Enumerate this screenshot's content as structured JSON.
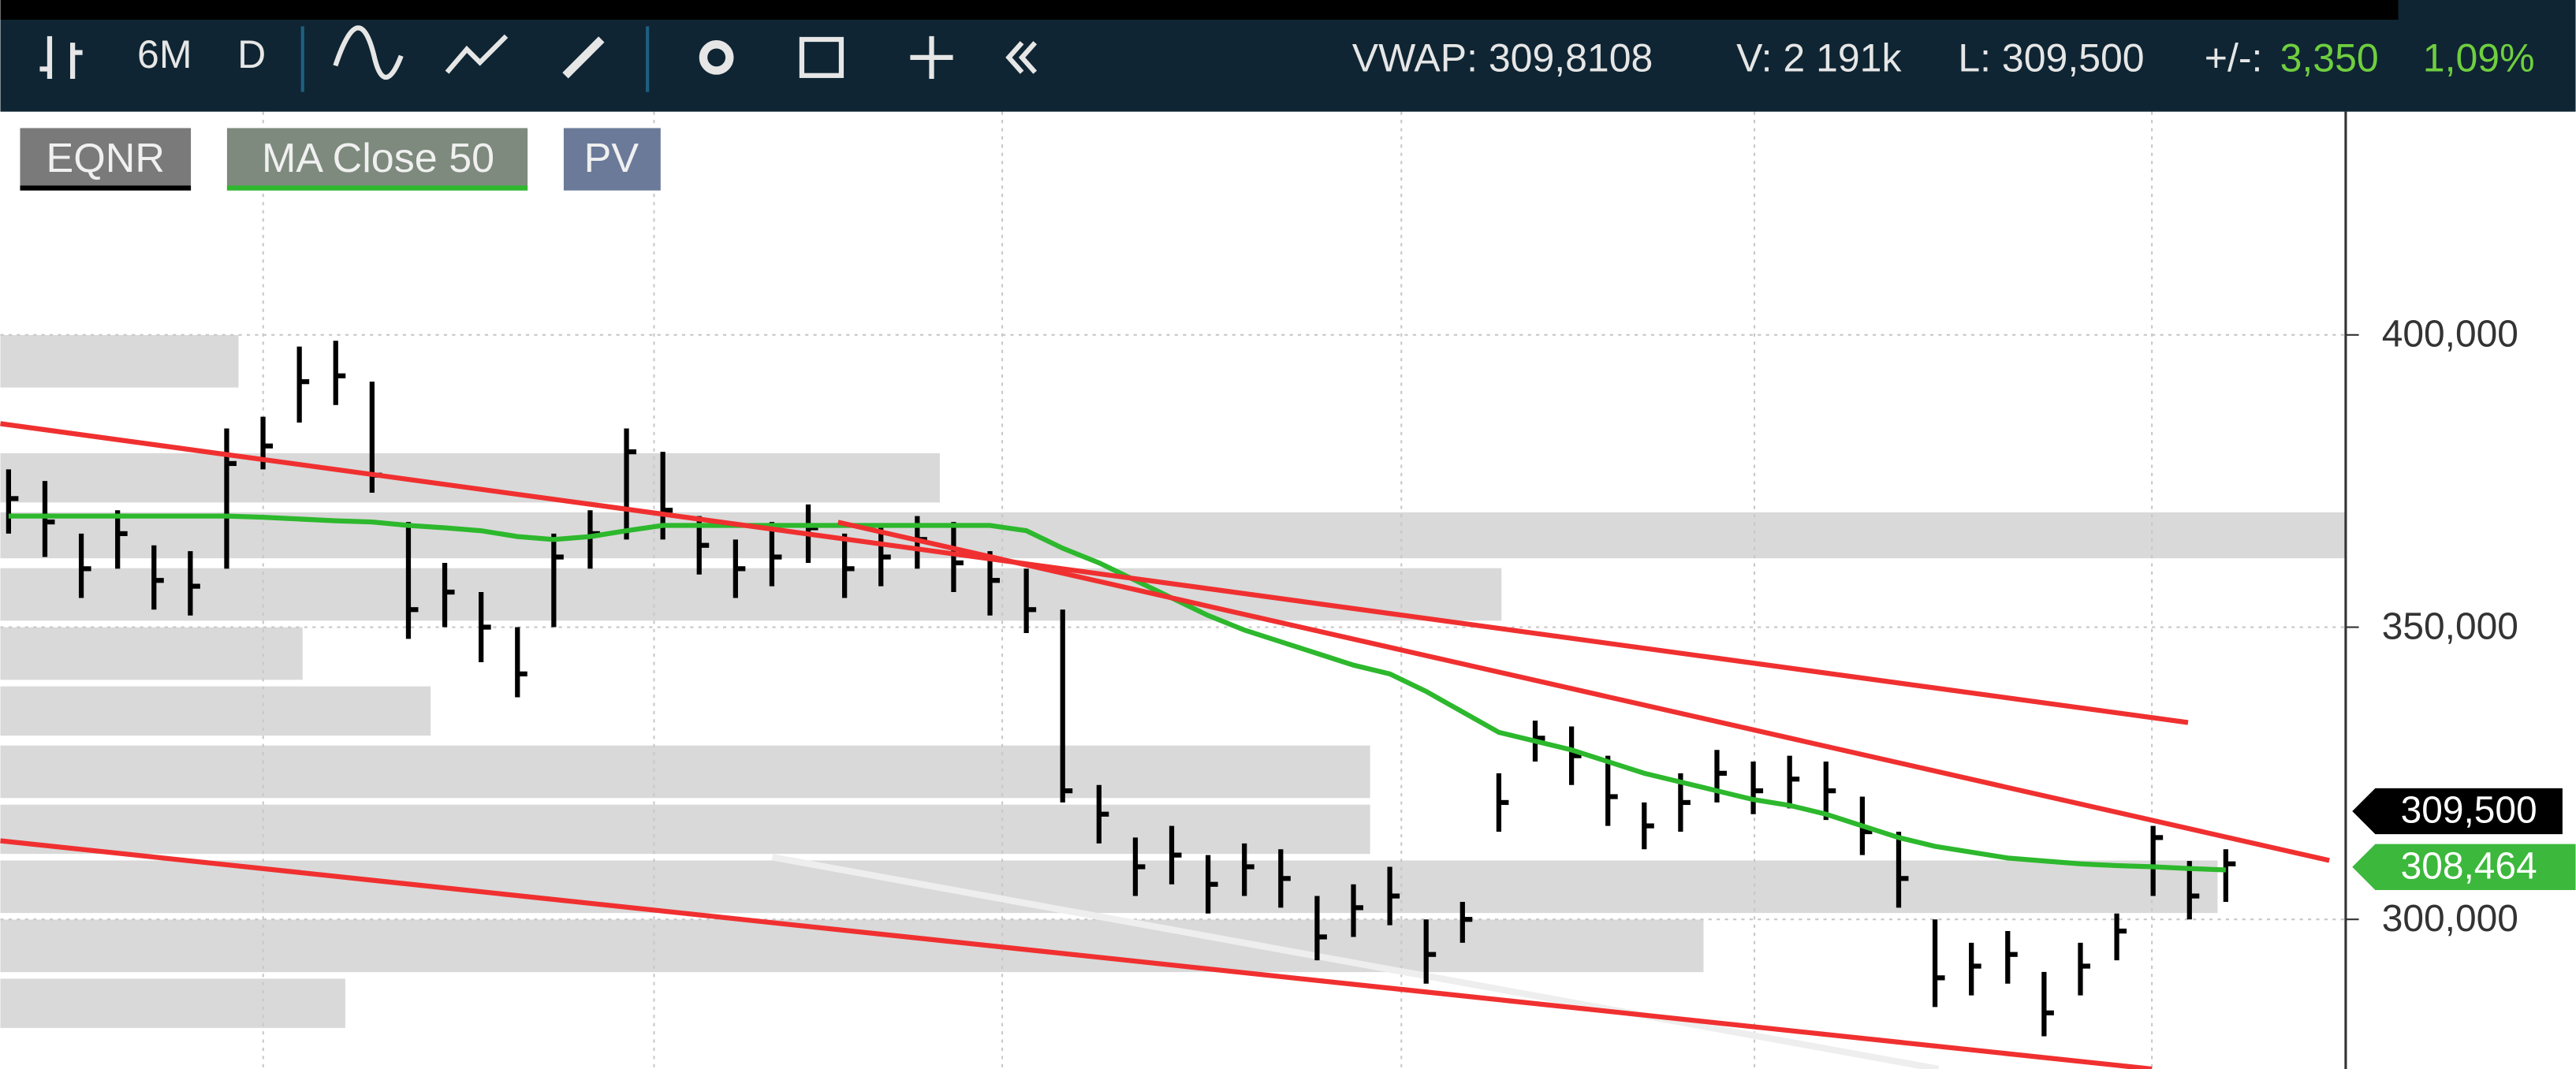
{
  "toolbar": {
    "period": "6M",
    "interval": "D",
    "vwap": "VWAP: 309,8108",
    "volume": "V: 2 191k",
    "last": "L: 309,500",
    "change_label": "+/-:",
    "change": "3,350",
    "change_pct": "1,09%"
  },
  "legend_buttons": {
    "overlay": "PV"
  },
  "price_tags": [
    "309,500",
    "308,464"
  ],
  "chart_data": {
    "type": "ohlc",
    "ohlc": {
      "name": "EQNR",
      "color": "#000000",
      "high": [
        377,
        375,
        366,
        370,
        364,
        363,
        384,
        386,
        398,
        399,
        392,
        368,
        361,
        356,
        350,
        366,
        370,
        384,
        380,
        369,
        365,
        368,
        371,
        366,
        367,
        369,
        368,
        363,
        360,
        353,
        323,
        314,
        316,
        311,
        313,
        312,
        304,
        306,
        309,
        300,
        303,
        325,
        334,
        333,
        328,
        320,
        325,
        329,
        327,
        328,
        327,
        321,
        315,
        300,
        296,
        298,
        291,
        296,
        301,
        316,
        310,
        312
      ],
      "low": [
        366,
        362,
        355,
        360,
        353,
        352,
        360,
        377,
        385,
        388,
        373,
        348,
        350,
        344,
        338,
        350,
        360,
        365,
        365,
        359,
        355,
        357,
        361,
        355,
        357,
        360,
        356,
        352,
        349,
        320,
        313,
        304,
        306,
        301,
        304,
        302,
        293,
        297,
        299,
        289,
        296,
        315,
        327,
        323,
        316,
        312,
        315,
        320,
        318,
        319,
        317,
        311,
        302,
        285,
        287,
        289,
        280,
        287,
        293,
        304,
        300,
        303
      ],
      "close": [
        372,
        368,
        360,
        366,
        358,
        357,
        378,
        381,
        392,
        393,
        376,
        353,
        356,
        350,
        342,
        362,
        366,
        380,
        370,
        364,
        360,
        362,
        367,
        360,
        362,
        365,
        361,
        358,
        353,
        322,
        318,
        309,
        311,
        306,
        309,
        307,
        297,
        302,
        304,
        294,
        300,
        320,
        331,
        328,
        321,
        316,
        320,
        325,
        322,
        324,
        322,
        315,
        307,
        290,
        292,
        294,
        284,
        292,
        298,
        314,
        304,
        309.5
      ]
    },
    "series": [
      {
        "name": "MA Close 50",
        "color": "#2db82d",
        "values": [
          369,
          369,
          369,
          369,
          369,
          369,
          369,
          368.8,
          368.5,
          368.2,
          368,
          367.4,
          367,
          366.5,
          365.5,
          365,
          365.5,
          366.5,
          367.4,
          367.4,
          367.4,
          367.4,
          367.4,
          367.4,
          367.4,
          367.4,
          367.4,
          367.4,
          366.5,
          363.5,
          361,
          358,
          355,
          352,
          349.5,
          347.5,
          345.5,
          343.5,
          342,
          339,
          335.5,
          332,
          330.5,
          329,
          327,
          325,
          323.5,
          322,
          320.5,
          319.5,
          318,
          316,
          314,
          312.5,
          311.5,
          310.5,
          310,
          309.5,
          309.2,
          309,
          308.7,
          308.464
        ]
      }
    ],
    "ylim": [
      274.4,
      438.2
    ],
    "yticks": [
      {
        "value": 300,
        "label": "300,000"
      },
      {
        "value": 350,
        "label": "350,000"
      },
      {
        "value": 400,
        "label": "400,000"
      }
    ],
    "grid": true
  }
}
